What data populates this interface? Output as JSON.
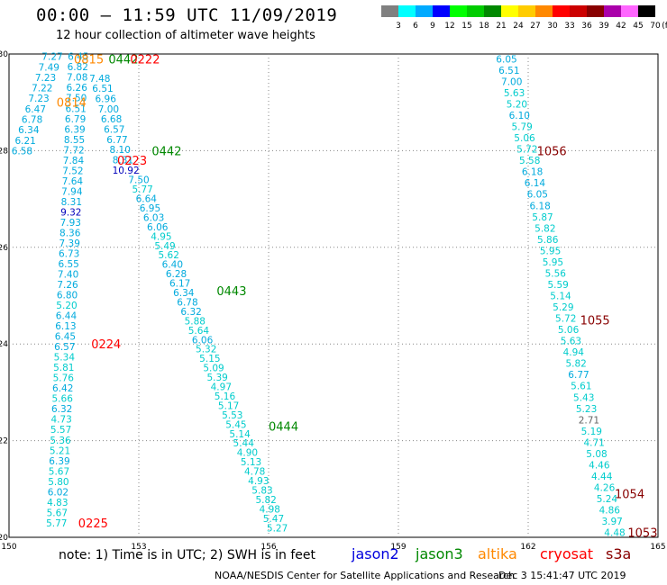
{
  "header": {
    "title": "00:00 – 11:59 UTC 11/09/2019",
    "subtitle": "12 hour collection of altimeter wave heights"
  },
  "legend": {
    "unit_label": "(ft)",
    "items": [
      {
        "label": "3",
        "color": "#808080"
      },
      {
        "label": "6",
        "color": "#00ffff"
      },
      {
        "label": "9",
        "color": "#00aaff"
      },
      {
        "label": "12",
        "color": "#0000ff"
      },
      {
        "label": "15",
        "color": "#00ff00"
      },
      {
        "label": "18",
        "color": "#00cc00"
      },
      {
        "label": "21",
        "color": "#008800"
      },
      {
        "label": "24",
        "color": "#ffff00"
      },
      {
        "label": "27",
        "color": "#ffcc00"
      },
      {
        "label": "30",
        "color": "#ff8800"
      },
      {
        "label": "33",
        "color": "#ff0000"
      },
      {
        "label": "36",
        "color": "#cc0000"
      },
      {
        "label": "39",
        "color": "#880000"
      },
      {
        "label": "42",
        "color": "#aa00aa"
      },
      {
        "label": "45",
        "color": "#ff66ff"
      },
      {
        "label": "70",
        "color": "#000000"
      }
    ]
  },
  "map": {
    "lon_min": 150,
    "lon_max": 165,
    "lat_min": 20,
    "lat_max": 30,
    "lon_ticks": [
      "150",
      "153",
      "156",
      "159",
      "162",
      "165"
    ],
    "lat_ticks": [
      "30",
      "28",
      "26",
      "24",
      "22",
      "20"
    ],
    "grid": "dotted"
  },
  "passes": [
    {
      "time": "0815",
      "satellite": "altika",
      "lon": 151.5,
      "lat": 29.9
    },
    {
      "time": "0814",
      "satellite": "altika",
      "lon": 151.1,
      "lat": 29.0
    },
    {
      "time": "0442",
      "satellite": "jason3",
      "lon": 152.3,
      "lat": 29.9
    },
    {
      "time": "0442",
      "satellite": "jason3",
      "lon": 153.3,
      "lat": 28.0
    },
    {
      "time": "0443",
      "satellite": "jason3",
      "lon": 154.8,
      "lat": 25.1
    },
    {
      "time": "0444",
      "satellite": "jason3",
      "lon": 156.0,
      "lat": 22.3
    },
    {
      "time": "0222",
      "satellite": "cryosat",
      "lon": 152.8,
      "lat": 29.9
    },
    {
      "time": "0223",
      "satellite": "cryosat",
      "lon": 152.5,
      "lat": 27.8
    },
    {
      "time": "0224",
      "satellite": "cryosat",
      "lon": 151.9,
      "lat": 24.0
    },
    {
      "time": "0225",
      "satellite": "cryosat",
      "lon": 151.6,
      "lat": 20.3
    },
    {
      "time": "1056",
      "satellite": "s3a",
      "lon": 162.2,
      "lat": 28.0
    },
    {
      "time": "1055",
      "satellite": "s3a",
      "lon": 163.2,
      "lat": 24.5
    },
    {
      "time": "1054",
      "satellite": "s3a",
      "lon": 164.0,
      "lat": 20.9
    },
    {
      "time": "1053",
      "satellite": "s3a",
      "lon": 164.3,
      "lat": 20.1
    }
  ],
  "tracks": [
    {
      "satellite": "altika",
      "start": [
        151.0,
        29.95
      ],
      "end": [
        150.3,
        28.0
      ],
      "values": [
        "7.27",
        "7.49",
        "7.23",
        "7.22",
        "7.23",
        "6.47",
        "6.78",
        "6.34",
        "6.21",
        "6.58"
      ]
    },
    {
      "satellite": "jason3",
      "start": [
        151.6,
        29.95
      ],
      "end": [
        151.1,
        20.3
      ],
      "values": [
        "6.45",
        "6.82",
        "7.08",
        "6.26",
        "7.50",
        "6.51",
        "6.79",
        "6.39",
        "8.55",
        "7.72",
        "7.84",
        "7.52",
        "7.64",
        "7.94",
        "8.31",
        "9.32",
        "7.93",
        "8.36",
        "7.39",
        "6.73",
        "6.55",
        "7.40",
        "7.26",
        "6.80",
        "5.20",
        "6.44",
        "6.13",
        "6.45",
        "6.57",
        "5.34",
        "5.81",
        "5.76",
        "6.42",
        "5.66",
        "6.32",
        "4.73",
        "5.57",
        "5.36",
        "5.21",
        "6.39",
        "5.67",
        "5.80",
        "6.02",
        "4.83",
        "5.67",
        "5.77"
      ]
    },
    {
      "satellite": "jason3",
      "start": [
        152.1,
        29.5
      ],
      "end": [
        152.7,
        27.6
      ],
      "values": [
        "7.48",
        "6.51",
        "6.96",
        "7.00",
        "6.68",
        "6.57",
        "6.77",
        "8.10",
        "8.31",
        "10.92"
      ]
    },
    {
      "satellite": "jason3",
      "start": [
        153.0,
        27.4
      ],
      "end": [
        156.2,
        20.2
      ],
      "values": [
        "7.50",
        "5.77",
        "6.64",
        "6.95",
        "6.03",
        "6.06",
        "4.95",
        "5.49",
        "5.62",
        "6.40",
        "6.28",
        "6.17",
        "6.34",
        "6.78",
        "6.32",
        "5.88",
        "5.64",
        "6.06",
        "5.32",
        "5.15",
        "5.09",
        "5.39",
        "4.97",
        "5.16",
        "5.17",
        "5.53",
        "5.45",
        "5.14",
        "5.44",
        "4.90",
        "5.13",
        "4.78",
        "4.93",
        "5.83",
        "5.82",
        "4.98",
        "5.47",
        "5.27"
      ]
    },
    {
      "satellite": "s3a",
      "start": [
        161.5,
        29.9
      ],
      "end": [
        164.0,
        20.1
      ],
      "values": [
        "6.05",
        "6.51",
        "7.00",
        "5.63",
        "5.20",
        "6.10",
        "5.79",
        "5.06",
        "5.72",
        "5.58",
        "6.18",
        "6.14",
        "6.05",
        "6.18",
        "5.87",
        "5.82",
        "5.86",
        "5.95",
        "5.95",
        "5.56",
        "5.59",
        "5.14",
        "5.29",
        "5.72",
        "5.06",
        "5.63",
        "4.94",
        "5.82",
        "6.77",
        "5.61",
        "5.43",
        "5.23",
        "2.71",
        "5.19",
        "4.71",
        "5.08",
        "4.46",
        "4.44",
        "4.26",
        "5.24",
        "4.86",
        "3.97",
        "4.48"
      ]
    }
  ],
  "footer": {
    "note": "note: 1) Time is in UTC; 2) SWH is in feet",
    "satellites": [
      {
        "name": "jason2",
        "color": "#0000dd"
      },
      {
        "name": "jason3",
        "color": "#008800"
      },
      {
        "name": "altika",
        "color": "#ff8800"
      },
      {
        "name": "cryosat",
        "color": "#ff0000"
      },
      {
        "name": "s3a",
        "color": "#880000"
      }
    ],
    "credit": "NOAA/NESDIS Center for Satellite Applications and Research",
    "timestamp": "Dec  3 15:41:47 UTC 2019"
  }
}
